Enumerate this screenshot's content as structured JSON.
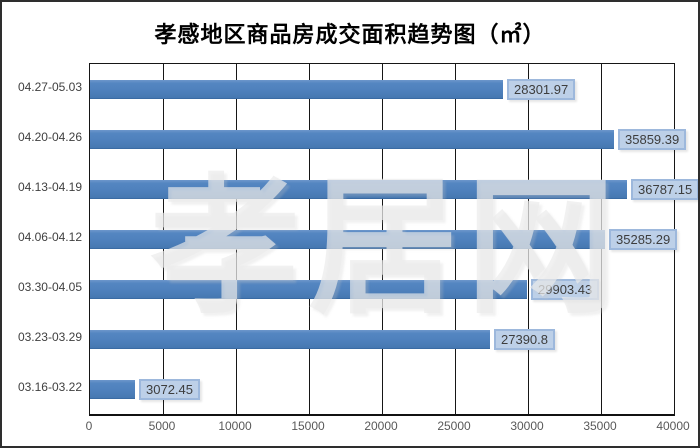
{
  "watermark": {
    "text": "孝居网"
  },
  "frame": {
    "background_color": "#ffffff",
    "border_color": "#2e2e2e"
  },
  "chart_data": {
    "type": "bar",
    "orientation": "horizontal",
    "title": "孝感地区商品房成交面积趋势图（㎡）",
    "categories": [
      "04.27-05.03",
      "04.20-04.26",
      "04.13-04.19",
      "04.06-04.12",
      "03.30-04.05",
      "03.23-03.29",
      "03.16-03.22"
    ],
    "values": [
      28301.97,
      35859.39,
      36787.15,
      35285.29,
      29903.43,
      27390.8,
      3072.45
    ],
    "value_labels": [
      "28301.97",
      "35859.39",
      "36787.15",
      "35285.29",
      "29903.43",
      "27390.8",
      "3072.45"
    ],
    "xlim": [
      0,
      40000
    ],
    "xticks": [
      0,
      5000,
      10000,
      15000,
      20000,
      25000,
      30000,
      35000,
      40000
    ],
    "grid": "vertical-only",
    "legend": "none",
    "bar_color": "#4f81bd",
    "value_box_fill": "#bdd0e8",
    "value_box_border": "#9db8dc",
    "value_text_color": "#3d3d3d",
    "category_text_color": "#3f3f3f",
    "tick_text_color": "#595959",
    "gridline_color": "#161616"
  }
}
